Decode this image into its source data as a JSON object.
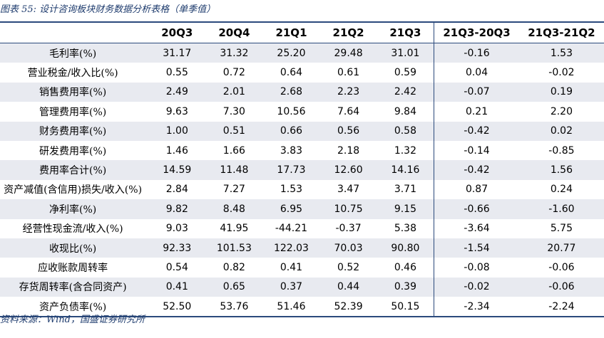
{
  "caption": "图表 55:  设计咨询板块财务数据分析表格（单季值）",
  "source": "资料来源：Wind，国盛证券研究所",
  "table": {
    "corner": "",
    "headers": [
      "20Q3",
      "20Q4",
      "21Q1",
      "21Q2",
      "21Q3",
      "21Q3-20Q3",
      "21Q3-21Q2"
    ],
    "rows": [
      {
        "label": "毛利率(%)",
        "values": [
          "31.17",
          "31.32",
          "25.20",
          "29.48",
          "31.01",
          "-0.16",
          "1.53"
        ]
      },
      {
        "label": "营业税金/收入比(%)",
        "values": [
          "0.55",
          "0.72",
          "0.64",
          "0.61",
          "0.59",
          "0.04",
          "-0.02"
        ]
      },
      {
        "label": "销售费用率(%)",
        "values": [
          "2.49",
          "2.01",
          "2.68",
          "2.23",
          "2.42",
          "-0.07",
          "0.19"
        ]
      },
      {
        "label": "管理费用率(%)",
        "values": [
          "9.63",
          "7.30",
          "10.56",
          "7.64",
          "9.84",
          "0.21",
          "2.20"
        ]
      },
      {
        "label": "财务费用率(%)",
        "values": [
          "1.00",
          "0.51",
          "0.66",
          "0.56",
          "0.58",
          "-0.42",
          "0.02"
        ]
      },
      {
        "label": "研发费用率(%)",
        "values": [
          "1.46",
          "1.66",
          "3.83",
          "2.18",
          "1.32",
          "-0.14",
          "-0.85"
        ]
      },
      {
        "label": "费用率合计(%)",
        "values": [
          "14.59",
          "11.48",
          "17.73",
          "12.60",
          "14.16",
          "-0.42",
          "1.56"
        ]
      },
      {
        "label": "资产减值(含信用)损失/收入(%)",
        "values": [
          "2.84",
          "7.27",
          "1.53",
          "3.47",
          "3.71",
          "0.87",
          "0.24"
        ]
      },
      {
        "label": "净利率(%)",
        "values": [
          "9.82",
          "8.48",
          "6.95",
          "10.75",
          "9.15",
          "-0.66",
          "-1.60"
        ]
      },
      {
        "label": "经营性现金流/收入(%)",
        "values": [
          "9.03",
          "41.95",
          "-44.21",
          "-0.37",
          "5.38",
          "-3.64",
          "5.75"
        ]
      },
      {
        "label": "收现比(%)",
        "values": [
          "92.33",
          "101.53",
          "122.03",
          "70.03",
          "90.80",
          "-1.54",
          "20.77"
        ]
      },
      {
        "label": "应收账款周转率",
        "values": [
          "0.54",
          "0.82",
          "0.41",
          "0.52",
          "0.46",
          "-0.08",
          "-0.06"
        ]
      },
      {
        "label": "存货周转率(含合同资产)",
        "values": [
          "0.41",
          "0.65",
          "0.37",
          "0.44",
          "0.39",
          "-0.02",
          "-0.06"
        ]
      },
      {
        "label": "资产负债率(%)",
        "values": [
          "52.50",
          "53.76",
          "51.46",
          "52.39",
          "50.15",
          "-2.34",
          "-2.24"
        ]
      }
    ]
  },
  "colors": {
    "accent": "#2b4a7c",
    "caption_text": "#1f3c6e",
    "band": "#e8eaf0"
  }
}
